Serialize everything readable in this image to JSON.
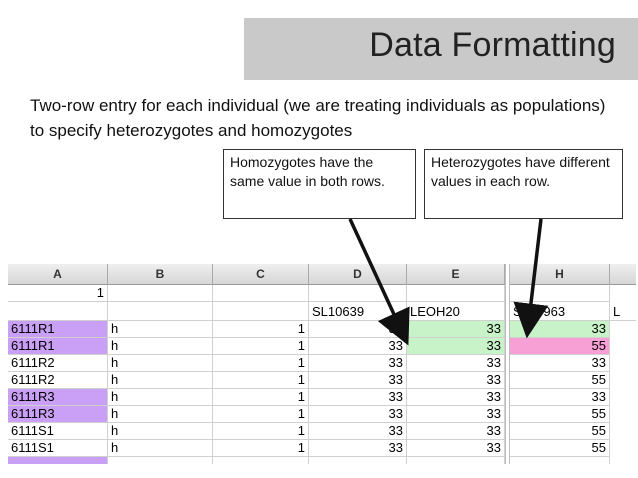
{
  "slide": {
    "title": "Data Formatting",
    "subtitle": "Two-row entry for each individual (we are treating individuals as populations) to specify heterozygotes and homozygotes",
    "callout_homo": "Homozygotes have the same value in both rows.",
    "callout_hetero": "Heterozygotes have different values in each row."
  },
  "sheet": {
    "columns": [
      "A",
      "B",
      "C",
      "D",
      "E",
      "H"
    ],
    "row1": {
      "A": "1"
    },
    "row2": {
      "D": "SL10639",
      "E": "LEOH20",
      "H": "SL10963",
      "extra": "L"
    },
    "rows": [
      {
        "A": "6111R1",
        "B": "h",
        "C": "1",
        "D": "33",
        "E": "33",
        "H": "33",
        "a_color": "purple",
        "e_color": "green",
        "h_color": "green"
      },
      {
        "A": "6111R1",
        "B": "h",
        "C": "1",
        "D": "33",
        "E": "33",
        "H": "55",
        "a_color": "purple",
        "e_color": "green",
        "h_color": "pink"
      },
      {
        "A": "6111R2",
        "B": "h",
        "C": "1",
        "D": "33",
        "E": "33",
        "H": "33",
        "a_color": "",
        "e_color": "",
        "h_color": ""
      },
      {
        "A": "6111R2",
        "B": "h",
        "C": "1",
        "D": "33",
        "E": "33",
        "H": "55",
        "a_color": "",
        "e_color": "",
        "h_color": ""
      },
      {
        "A": "6111R3",
        "B": "h",
        "C": "1",
        "D": "33",
        "E": "33",
        "H": "33",
        "a_color": "purple",
        "e_color": "",
        "h_color": ""
      },
      {
        "A": "6111R3",
        "B": "h",
        "C": "1",
        "D": "33",
        "E": "33",
        "H": "55",
        "a_color": "purple",
        "e_color": "",
        "h_color": ""
      },
      {
        "A": "6111S1",
        "B": "h",
        "C": "1",
        "D": "33",
        "E": "33",
        "H": "55",
        "a_color": "",
        "e_color": "",
        "h_color": ""
      },
      {
        "A": "6111S1",
        "B": "h",
        "C": "1",
        "D": "33",
        "E": "33",
        "H": "55",
        "a_color": "",
        "e_color": "",
        "h_color": ""
      }
    ]
  },
  "colors": {
    "purple": "#c9a0f5",
    "green": "#c8f3c8",
    "pink": "#f7a0d6",
    "title_bg": "#c9c9c9"
  }
}
